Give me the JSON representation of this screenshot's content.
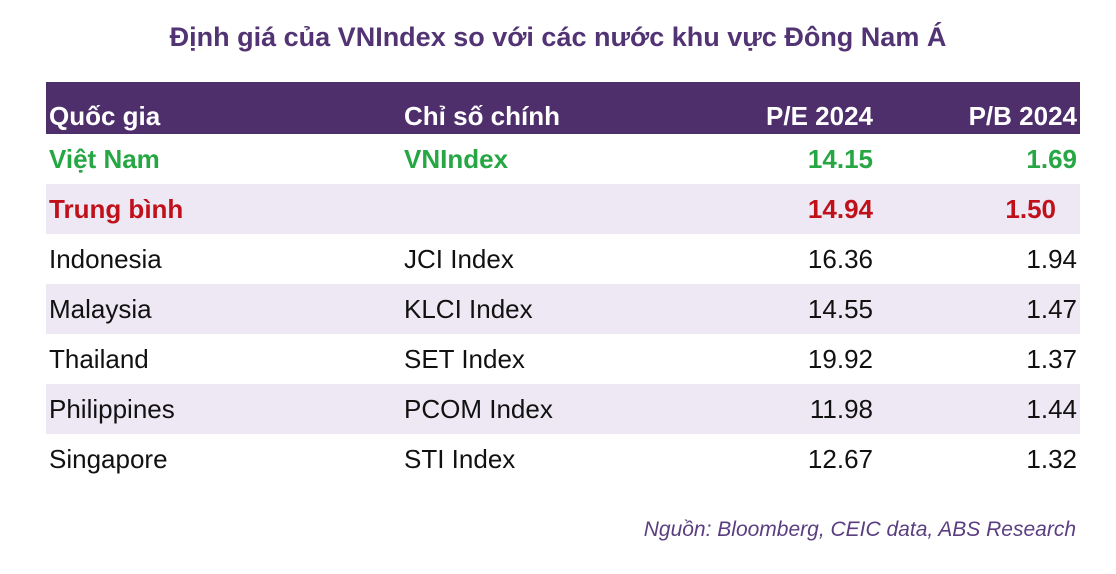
{
  "title": "Định giá của VNIndex so với các nước khu vực Đông Nam Á",
  "table": {
    "headers": [
      "Quốc gia",
      "Chỉ số chính",
      "P/E 2024",
      "P/B 2024"
    ],
    "rows": [
      {
        "country": "Việt Nam",
        "index": "VNIndex",
        "pe": "14.15",
        "pb": "1.69"
      },
      {
        "country": "Trung bình",
        "index": "",
        "pe": "14.94",
        "pb": "1.50"
      },
      {
        "country": "Indonesia",
        "index": "JCI Index",
        "pe": "16.36",
        "pb": "1.94"
      },
      {
        "country": "Malaysia",
        "index": "KLCI Index",
        "pe": "14.55",
        "pb": "1.47"
      },
      {
        "country": "Thailand",
        "index": "SET Index",
        "pe": "19.92",
        "pb": "1.37"
      },
      {
        "country": "Philippines",
        "index": "PCOM Index",
        "pe": "11.98",
        "pb": "1.44"
      },
      {
        "country": "Singapore",
        "index": "STI Index",
        "pe": "12.67",
        "pb": "1.32"
      }
    ]
  },
  "source": "Nguồn: Bloomberg, CEIC data, ABS Research",
  "colors": {
    "header_bg": "#4e2f6b",
    "title": "#523374",
    "highlight": "#26a744",
    "average": "#c0111a",
    "stripe": "#ede8f3"
  }
}
